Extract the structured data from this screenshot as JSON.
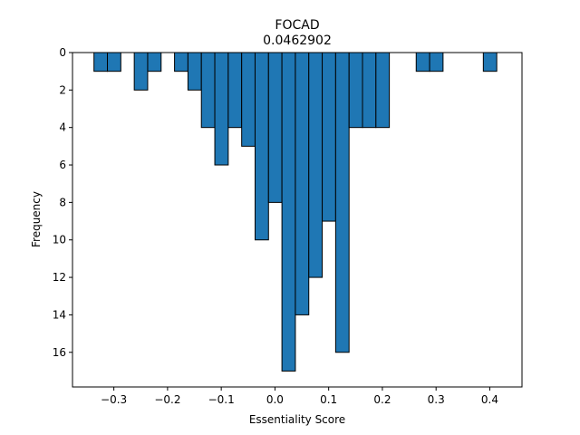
{
  "chart_data": {
    "type": "bar",
    "title": "FOCAD",
    "subtitle": "0.0462902",
    "xlabel": "Essentiality Score",
    "ylabel": "Frequency",
    "xlim": [
      -0.377,
      0.46
    ],
    "ylim": [
      0,
      17.85
    ],
    "y_inverted": true,
    "bar_color": "#1f77b4",
    "edge_color": "#000000",
    "bin_width": 0.025,
    "xticks": [
      -0.3,
      -0.2,
      -0.1,
      0.0,
      0.1,
      0.2,
      0.3,
      0.4
    ],
    "xtick_labels": [
      "−0.3",
      "−0.2",
      "−0.1",
      "0.0",
      "0.1",
      "0.2",
      "0.3",
      "0.4"
    ],
    "yticks": [
      0,
      2,
      4,
      6,
      8,
      10,
      12,
      14,
      16
    ],
    "ytick_labels": [
      "0",
      "2",
      "4",
      "6",
      "8",
      "10",
      "12",
      "14",
      "16"
    ],
    "bins": [
      {
        "left": -0.337,
        "count": 1
      },
      {
        "left": -0.312,
        "count": 1
      },
      {
        "left": -0.262,
        "count": 2
      },
      {
        "left": -0.237,
        "count": 1
      },
      {
        "left": -0.187,
        "count": 1
      },
      {
        "left": -0.162,
        "count": 2
      },
      {
        "left": -0.137,
        "count": 4
      },
      {
        "left": -0.112,
        "count": 6
      },
      {
        "left": -0.087,
        "count": 4
      },
      {
        "left": -0.062,
        "count": 5
      },
      {
        "left": -0.037,
        "count": 10
      },
      {
        "left": -0.012,
        "count": 8
      },
      {
        "left": 0.013,
        "count": 17
      },
      {
        "left": 0.038,
        "count": 14
      },
      {
        "left": 0.063,
        "count": 12
      },
      {
        "left": 0.088,
        "count": 9
      },
      {
        "left": 0.113,
        "count": 16
      },
      {
        "left": 0.138,
        "count": 4
      },
      {
        "left": 0.163,
        "count": 4
      },
      {
        "left": 0.188,
        "count": 4
      },
      {
        "left": 0.263,
        "count": 1
      },
      {
        "left": 0.288,
        "count": 1
      },
      {
        "left": 0.388,
        "count": 1
      }
    ]
  }
}
